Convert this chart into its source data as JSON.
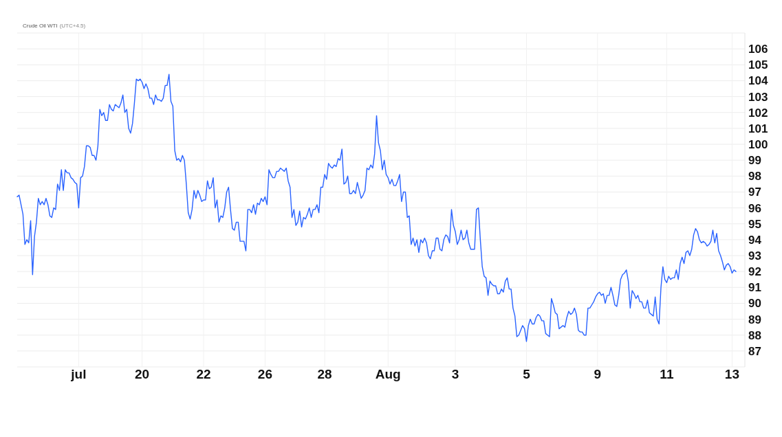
{
  "chart_data": {
    "type": "line",
    "title": "Crude Oil WTI",
    "subtitle": "(UTC+4.5)",
    "categories": [
      null,
      null,
      null,
      null,
      null,
      null,
      null,
      null,
      null,
      null,
      null,
      null,
      null,
      null,
      null,
      null,
      null,
      null,
      null,
      null,
      null,
      null,
      null,
      null,
      null,
      null,
      null,
      null,
      null,
      null,
      null,
      null,
      "jul",
      null,
      null,
      null,
      null,
      null,
      null,
      null,
      null,
      null,
      null,
      null,
      null,
      null,
      null,
      null,
      null,
      null,
      null,
      null,
      null,
      null,
      null,
      null,
      null,
      null,
      null,
      null,
      null,
      null,
      null,
      null,
      null,
      "20",
      null,
      null,
      null,
      null,
      null,
      null,
      null,
      null,
      null,
      null,
      null,
      null,
      null,
      null,
      null,
      null,
      null,
      null,
      null,
      null,
      null,
      null,
      null,
      null,
      null,
      null,
      null,
      null,
      null,
      null,
      null,
      "22",
      null,
      null,
      null,
      null,
      null,
      null,
      null,
      null,
      null,
      null,
      null,
      null,
      null,
      null,
      null,
      null,
      null,
      null,
      null,
      null,
      null,
      null,
      null,
      null,
      null,
      null,
      null,
      null,
      null,
      null,
      null,
      "26",
      null,
      null,
      null,
      null,
      null,
      null,
      null,
      null,
      null,
      null,
      null,
      null,
      null,
      null,
      null,
      null,
      null,
      null,
      null,
      null,
      null,
      null,
      null,
      null,
      null,
      null,
      null,
      null,
      null,
      null,
      "28",
      null,
      null,
      null,
      null,
      null,
      null,
      null,
      null,
      null,
      null,
      null,
      null,
      null,
      null,
      null,
      null,
      null,
      null,
      null,
      null,
      null,
      null,
      null,
      null,
      null,
      null,
      null,
      null,
      null,
      null,
      null,
      null,
      "Aug",
      null,
      null,
      null,
      null,
      null,
      null,
      null,
      null,
      null,
      null,
      null,
      null,
      null,
      null,
      null,
      null,
      null,
      null,
      null,
      null,
      null,
      null,
      null,
      null,
      null,
      null,
      null,
      null,
      null,
      null,
      null,
      null,
      null,
      null,
      "3",
      null,
      null,
      null,
      null,
      null,
      null,
      null,
      null,
      null,
      null,
      null,
      null,
      null,
      null,
      null,
      null,
      null,
      null,
      null,
      null,
      null,
      null,
      null,
      null,
      null,
      null,
      null,
      null,
      null,
      null,
      null,
      null,
      null,
      null,
      null,
      null,
      "5",
      null,
      null,
      null,
      null,
      null,
      null,
      null,
      null,
      null,
      null,
      null,
      null,
      null,
      null,
      null,
      null,
      null,
      null,
      null,
      null,
      null,
      null,
      null,
      null,
      null,
      null,
      null,
      null,
      null,
      null,
      null,
      null,
      null,
      null,
      null,
      null,
      "9",
      null,
      null,
      null,
      null,
      null,
      null,
      null,
      null,
      null,
      null,
      null,
      null,
      null,
      null,
      null,
      null,
      null,
      null,
      null,
      null,
      null,
      null,
      null,
      null,
      null,
      null,
      null,
      null,
      null,
      null,
      null,
      null,
      null,
      null,
      null,
      "11",
      null,
      null,
      null,
      null,
      null,
      null,
      null,
      null,
      null,
      null,
      null,
      null,
      null,
      null,
      null,
      null,
      null,
      null,
      null,
      null,
      null,
      null,
      null,
      null,
      null,
      null,
      null,
      null,
      null,
      null,
      null,
      null,
      null,
      "13",
      null,
      null
    ],
    "series": [
      {
        "color": "#2962ff",
        "values": [
          96.7,
          96.8,
          96.2,
          95.6,
          93.7,
          94.0,
          93.8,
          95.2,
          91.8,
          94.2,
          95.1,
          96.6,
          96.2,
          96.4,
          96.2,
          96.6,
          96.2,
          95.5,
          95.4,
          96.0,
          95.9,
          97.5,
          97.1,
          98.4,
          97.1,
          98.4,
          98.2,
          98.2,
          97.9,
          97.8,
          97.6,
          97.5,
          96.0,
          97.9,
          98.0,
          98.6,
          99.9,
          99.9,
          99.8,
          99.3,
          99.3,
          99.0,
          99.9,
          102.2,
          101.8,
          102.0,
          101.5,
          101.5,
          102.5,
          102.2,
          102.1,
          102.5,
          102.4,
          102.3,
          102.6,
          103.1,
          102.0,
          102.2,
          101.0,
          100.7,
          101.3,
          102.6,
          104.1,
          104.0,
          104.1,
          103.9,
          103.5,
          103.8,
          103.5,
          102.9,
          102.9,
          102.5,
          103.1,
          102.8,
          102.8,
          102.7,
          102.9,
          103.7,
          103.7,
          104.4,
          102.7,
          102.4,
          99.6,
          99.0,
          99.1,
          98.9,
          99.3,
          99.0,
          97.5,
          95.7,
          95.3,
          95.9,
          97.1,
          96.6,
          97.1,
          96.8,
          96.4,
          96.5,
          96.5,
          97.7,
          97.2,
          97.3,
          97.9,
          96.0,
          96.5,
          95.1,
          95.5,
          95.4,
          96.0,
          97.0,
          97.3,
          95.9,
          94.7,
          94.6,
          95.1,
          95.1,
          93.9,
          93.9,
          93.9,
          93.3,
          95.9,
          95.9,
          95.7,
          96.2,
          95.6,
          96.3,
          96.2,
          96.6,
          96.4,
          96.7,
          96.2,
          98.4,
          98.1,
          97.9,
          97.9,
          98.3,
          98.3,
          98.5,
          98.4,
          98.3,
          98.5,
          97.7,
          97.3,
          95.4,
          95.9,
          94.9,
          95.1,
          95.8,
          94.8,
          95.4,
          95.3,
          95.6,
          96.0,
          95.4,
          95.9,
          95.9,
          96.2,
          95.7,
          97.3,
          97.3,
          98.1,
          97.8,
          98.8,
          98.6,
          98.5,
          98.7,
          98.6,
          99.1,
          99.0,
          99.7,
          97.5,
          97.6,
          98.0,
          96.9,
          96.9,
          97.1,
          96.9,
          97.6,
          97.1,
          96.6,
          96.8,
          97.1,
          98.5,
          98.4,
          98.7,
          98.5,
          99.4,
          101.8,
          100.1,
          99.6,
          98.4,
          99.0,
          98.1,
          97.9,
          97.5,
          97.8,
          97.4,
          97.4,
          97.7,
          98.1,
          96.4,
          97.0,
          97.0,
          95.4,
          95.5,
          93.7,
          94.1,
          93.6,
          94.0,
          93.2,
          94.0,
          93.8,
          94.1,
          93.8,
          93.0,
          92.8,
          93.3,
          93.3,
          94.1,
          94.1,
          93.4,
          93.3,
          94.0,
          94.3,
          94.2,
          93.8,
          95.9,
          94.9,
          94.5,
          93.7,
          94.0,
          94.6,
          94.0,
          94.1,
          94.6,
          93.8,
          93.4,
          93.4,
          93.4,
          95.9,
          96.0,
          94.0,
          92.3,
          91.7,
          91.6,
          90.5,
          91.4,
          91.2,
          91.1,
          91.1,
          90.6,
          90.6,
          90.9,
          90.7,
          91.4,
          91.6,
          90.9,
          90.9,
          89.7,
          89.2,
          87.9,
          88.0,
          88.3,
          88.6,
          88.4,
          87.6,
          88.6,
          89.0,
          88.7,
          88.7,
          89.1,
          89.3,
          89.2,
          88.9,
          88.9,
          88.1,
          88.0,
          87.9,
          90.3,
          89.9,
          89.4,
          89.3,
          88.4,
          88.5,
          88.6,
          88.5,
          89.1,
          89.5,
          89.3,
          89.4,
          89.7,
          89.3,
          88.3,
          88.2,
          88.2,
          88.0,
          88.0,
          89.7,
          89.7,
          89.9,
          90.1,
          90.4,
          90.6,
          90.7,
          90.5,
          90.6,
          90.0,
          90.5,
          90.5,
          91.0,
          90.5,
          89.9,
          89.8,
          90.5,
          91.5,
          91.8,
          91.9,
          92.1,
          91.4,
          89.7,
          90.8,
          90.6,
          90.3,
          90.5,
          90.1,
          90.1,
          89.7,
          89.7,
          90.2,
          89.4,
          89.3,
          89.2,
          90.4,
          89.0,
          88.7,
          91.0,
          92.3,
          91.5,
          91.3,
          91.7,
          91.5,
          91.6,
          91.6,
          92.1,
          91.5,
          92.5,
          92.9,
          92.5,
          93.2,
          93.3,
          93.0,
          93.4,
          94.3,
          94.7,
          94.5,
          94.0,
          93.8,
          93.9,
          93.8,
          93.6,
          93.7,
          93.9,
          94.6,
          93.8,
          94.4,
          93.3,
          93.0,
          92.6,
          92.1,
          92.4,
          92.5,
          92.3,
          91.9,
          92.1,
          92.0
        ]
      }
    ],
    "ylim": [
      86,
      107
    ],
    "yticks": [
      {
        "value": 86,
        "label": null
      },
      87,
      88,
      89,
      90,
      91,
      92,
      93,
      94,
      95,
      96,
      97,
      98,
      99,
      100,
      101,
      102,
      103,
      104,
      105,
      106,
      {
        "value": 107,
        "label": null
      }
    ],
    "grid": true,
    "line_style": "solid",
    "marker": "none"
  }
}
